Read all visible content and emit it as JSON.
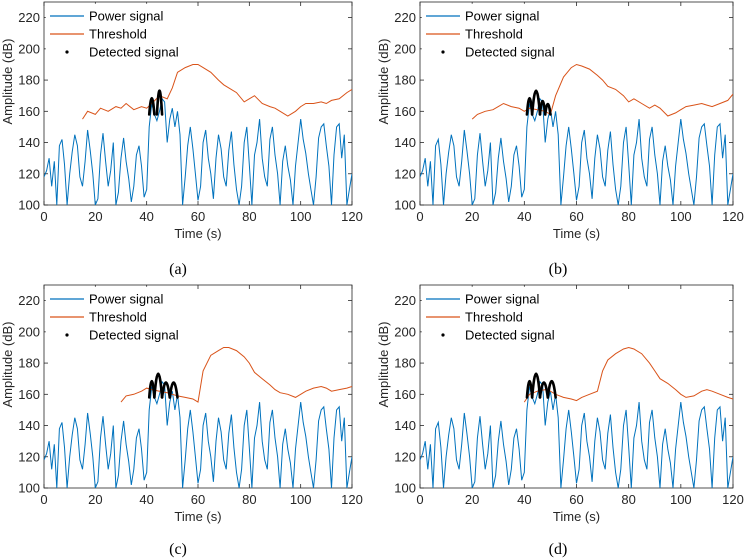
{
  "colors": {
    "power": "#0072BD",
    "threshold": "#D95319",
    "detected": "#000000",
    "axis": "#262626"
  },
  "common": {
    "xlabel": "Time (s)",
    "ylabel": "Amplitude (dB)",
    "xlim": [
      0,
      120
    ],
    "ylim": [
      100,
      230
    ],
    "xticks": [
      0,
      20,
      40,
      60,
      80,
      100,
      120
    ],
    "yticks": [
      100,
      120,
      140,
      160,
      180,
      200,
      220
    ],
    "legend": [
      "Power signal",
      "Threshold",
      "Detected signal"
    ],
    "power_signal_approx": {
      "x": [
        0,
        1,
        2,
        3,
        4,
        5,
        6,
        7,
        8,
        9,
        10,
        11,
        12,
        13,
        14,
        15,
        16,
        17,
        18,
        19,
        20,
        21,
        22,
        23,
        24,
        25,
        26,
        27,
        28,
        29,
        30,
        31,
        32,
        33,
        34,
        35,
        36,
        37,
        38,
        39,
        40,
        41,
        42,
        43,
        44,
        45,
        46,
        47,
        48,
        49,
        50,
        51,
        52,
        53,
        54,
        55,
        56,
        57,
        58,
        59,
        60,
        61,
        62,
        63,
        64,
        65,
        66,
        67,
        68,
        69,
        70,
        71,
        72,
        73,
        74,
        75,
        76,
        77,
        78,
        79,
        80,
        81,
        82,
        83,
        84,
        85,
        86,
        87,
        88,
        89,
        90,
        91,
        92,
        93,
        94,
        95,
        96,
        97,
        98,
        99,
        100,
        101,
        102,
        103,
        104,
        105,
        106,
        107,
        108,
        109,
        110,
        111,
        112,
        113,
        114,
        115,
        116,
        117,
        118,
        119,
        120
      ],
      "y": [
        118,
        122,
        130,
        112,
        128,
        100,
        138,
        142,
        126,
        100,
        120,
        134,
        145,
        138,
        118,
        112,
        128,
        148,
        135,
        120,
        100,
        104,
        132,
        146,
        128,
        112,
        122,
        140,
        100,
        108,
        130,
        143,
        128,
        117,
        102,
        112,
        132,
        138,
        125,
        105,
        110,
        150,
        165,
        158,
        154,
        160,
        168,
        166,
        140,
        155,
        162,
        150,
        160,
        145,
        100,
        118,
        138,
        150,
        136,
        120,
        103,
        112,
        140,
        148,
        130,
        120,
        104,
        130,
        145,
        136,
        118,
        112,
        135,
        147,
        126,
        110,
        100,
        112,
        140,
        150,
        126,
        100,
        132,
        140,
        155,
        130,
        118,
        112,
        142,
        150,
        132,
        120,
        100,
        128,
        138,
        125,
        116,
        100,
        125,
        140,
        155,
        142,
        133,
        120,
        110,
        100,
        118,
        143,
        150,
        152,
        138,
        125,
        100,
        132,
        150,
        152,
        130,
        145,
        100,
        110,
        120
      ]
    }
  },
  "chart_data": [
    {
      "type": "line",
      "caption": "(a)",
      "threshold_start": 15,
      "xlabel": "Time (s)",
      "ylabel": "Amplitude (dB)",
      "xlim": [
        0,
        120
      ],
      "ylim": [
        100,
        230
      ],
      "series": [
        {
          "name": "Power signal"
        },
        {
          "name": "Threshold",
          "x": [
            15,
            17,
            20,
            22,
            25,
            28,
            30,
            32,
            35,
            38,
            40,
            42,
            45,
            48,
            50,
            52,
            55,
            58,
            60,
            62,
            65,
            68,
            70,
            72,
            75,
            78,
            80,
            82,
            85,
            88,
            90,
            92,
            95,
            98,
            100,
            102,
            105,
            108,
            110,
            112,
            115,
            118,
            120
          ],
          "y": [
            155,
            160,
            158,
            162,
            160,
            163,
            162,
            165,
            161,
            163,
            162,
            165,
            170,
            168,
            175,
            185,
            188,
            190,
            190,
            188,
            185,
            180,
            177,
            175,
            172,
            166,
            168,
            170,
            165,
            163,
            162,
            160,
            157,
            160,
            163,
            165,
            165,
            166,
            165,
            167,
            168,
            172,
            174
          ]
        },
        {
          "name": "Detected signal",
          "x_range": [
            41,
            46
          ],
          "lobes": [
            [
              41,
              43,
              169
            ],
            [
              44,
              46,
              174
            ]
          ]
        }
      ]
    },
    {
      "type": "line",
      "caption": "(b)",
      "threshold_start": 20,
      "xlabel": "Time (s)",
      "ylabel": "Amplitude (dB)",
      "xlim": [
        0,
        120
      ],
      "ylim": [
        100,
        230
      ],
      "series": [
        {
          "name": "Power signal"
        },
        {
          "name": "Threshold",
          "x": [
            20,
            22,
            25,
            28,
            30,
            32,
            35,
            38,
            40,
            42,
            45,
            48,
            50,
            52,
            55,
            58,
            60,
            62,
            65,
            68,
            70,
            72,
            75,
            78,
            80,
            82,
            85,
            88,
            90,
            92,
            95,
            98,
            100,
            102,
            105,
            108,
            110,
            112,
            115,
            118,
            120
          ],
          "y": [
            155,
            158,
            160,
            161,
            163,
            165,
            163,
            162,
            160,
            162,
            161,
            160,
            158,
            170,
            182,
            188,
            190,
            189,
            187,
            183,
            180,
            176,
            174,
            170,
            166,
            168,
            165,
            162,
            164,
            162,
            157,
            159,
            161,
            163,
            164,
            165,
            164,
            163,
            165,
            167,
            171
          ]
        },
        {
          "name": "Detected signal",
          "x_range": [
            41,
            50
          ],
          "lobes": [
            [
              41,
              43,
              169
            ],
            [
              43,
              46,
              174
            ],
            [
              46,
              48,
              167
            ],
            [
              48,
              50,
              165
            ]
          ]
        }
      ]
    },
    {
      "type": "line",
      "caption": "(c)",
      "threshold_start": 30,
      "xlabel": "Time (s)",
      "ylabel": "Amplitude (dB)",
      "xlim": [
        0,
        120
      ],
      "ylim": [
        100,
        230
      ],
      "series": [
        {
          "name": "Power signal"
        },
        {
          "name": "Threshold",
          "x": [
            30,
            32,
            35,
            38,
            40,
            42,
            45,
            48,
            50,
            52,
            55,
            58,
            60,
            62,
            65,
            68,
            70,
            72,
            75,
            78,
            80,
            82,
            85,
            88,
            90,
            92,
            95,
            98,
            100,
            102,
            105,
            108,
            110,
            112,
            115,
            118,
            120
          ],
          "y": [
            155,
            159,
            160,
            162,
            164,
            163,
            162,
            161,
            160,
            159,
            158,
            157,
            155,
            175,
            185,
            188,
            190,
            190,
            188,
            184,
            180,
            174,
            170,
            166,
            163,
            161,
            160,
            158,
            160,
            162,
            164,
            165,
            164,
            162,
            163,
            164,
            165
          ]
        },
        {
          "name": "Detected signal",
          "x_range": [
            41,
            52
          ],
          "lobes": [
            [
              41,
              43,
              169
            ],
            [
              43,
              46,
              174
            ],
            [
              46,
              49,
              168
            ],
            [
              49,
              52,
              168
            ]
          ]
        }
      ]
    },
    {
      "type": "line",
      "caption": "(d)",
      "threshold_start": 40,
      "xlabel": "Time (s)",
      "ylabel": "Amplitude (dB)",
      "xlim": [
        0,
        120
      ],
      "ylim": [
        100,
        230
      ],
      "series": [
        {
          "name": "Power signal"
        },
        {
          "name": "Threshold",
          "x": [
            40,
            42,
            45,
            48,
            50,
            52,
            55,
            58,
            60,
            62,
            65,
            68,
            70,
            72,
            75,
            78,
            80,
            82,
            85,
            88,
            90,
            92,
            95,
            98,
            100,
            102,
            105,
            108,
            110,
            112,
            115,
            118,
            120
          ],
          "y": [
            155,
            160,
            162,
            163,
            162,
            160,
            158,
            157,
            156,
            158,
            160,
            162,
            175,
            182,
            186,
            189,
            190,
            189,
            186,
            180,
            175,
            170,
            167,
            163,
            160,
            158,
            159,
            162,
            163,
            162,
            160,
            158,
            157
          ]
        },
        {
          "name": "Detected signal",
          "x_range": [
            41,
            52
          ],
          "lobes": [
            [
              41,
              43,
              169
            ],
            [
              43,
              46,
              174
            ],
            [
              46,
              49,
              168
            ],
            [
              49,
              52,
              169
            ]
          ]
        }
      ]
    }
  ]
}
